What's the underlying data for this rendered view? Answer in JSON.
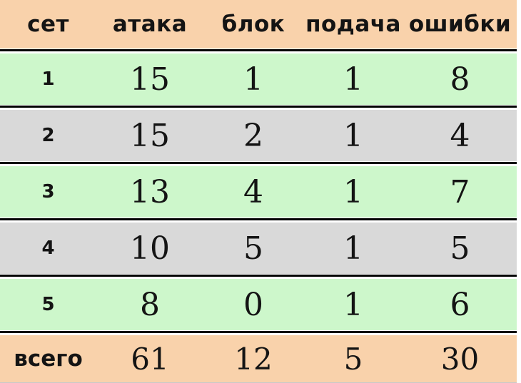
{
  "chart_data": {
    "type": "table",
    "columns": [
      "сет",
      "атака",
      "блок",
      "подача",
      "ошибки"
    ],
    "rows": [
      [
        "1",
        "15",
        "1",
        "1",
        "8"
      ],
      [
        "2",
        "15",
        "2",
        "1",
        "4"
      ],
      [
        "3",
        "13",
        "4",
        "1",
        "7"
      ],
      [
        "4",
        "10",
        "5",
        "1",
        "5"
      ],
      [
        "5",
        "8",
        "0",
        "1",
        "6"
      ]
    ],
    "total_row": [
      "всего",
      "61",
      "12",
      "5",
      "30"
    ]
  },
  "colors": {
    "header_bg": "#f9d2ab",
    "row_green": "#cdf7cb",
    "row_gray": "#d9d9d9",
    "total_bg": "#f9d2ab",
    "border": "#000000",
    "text": "#141414"
  }
}
